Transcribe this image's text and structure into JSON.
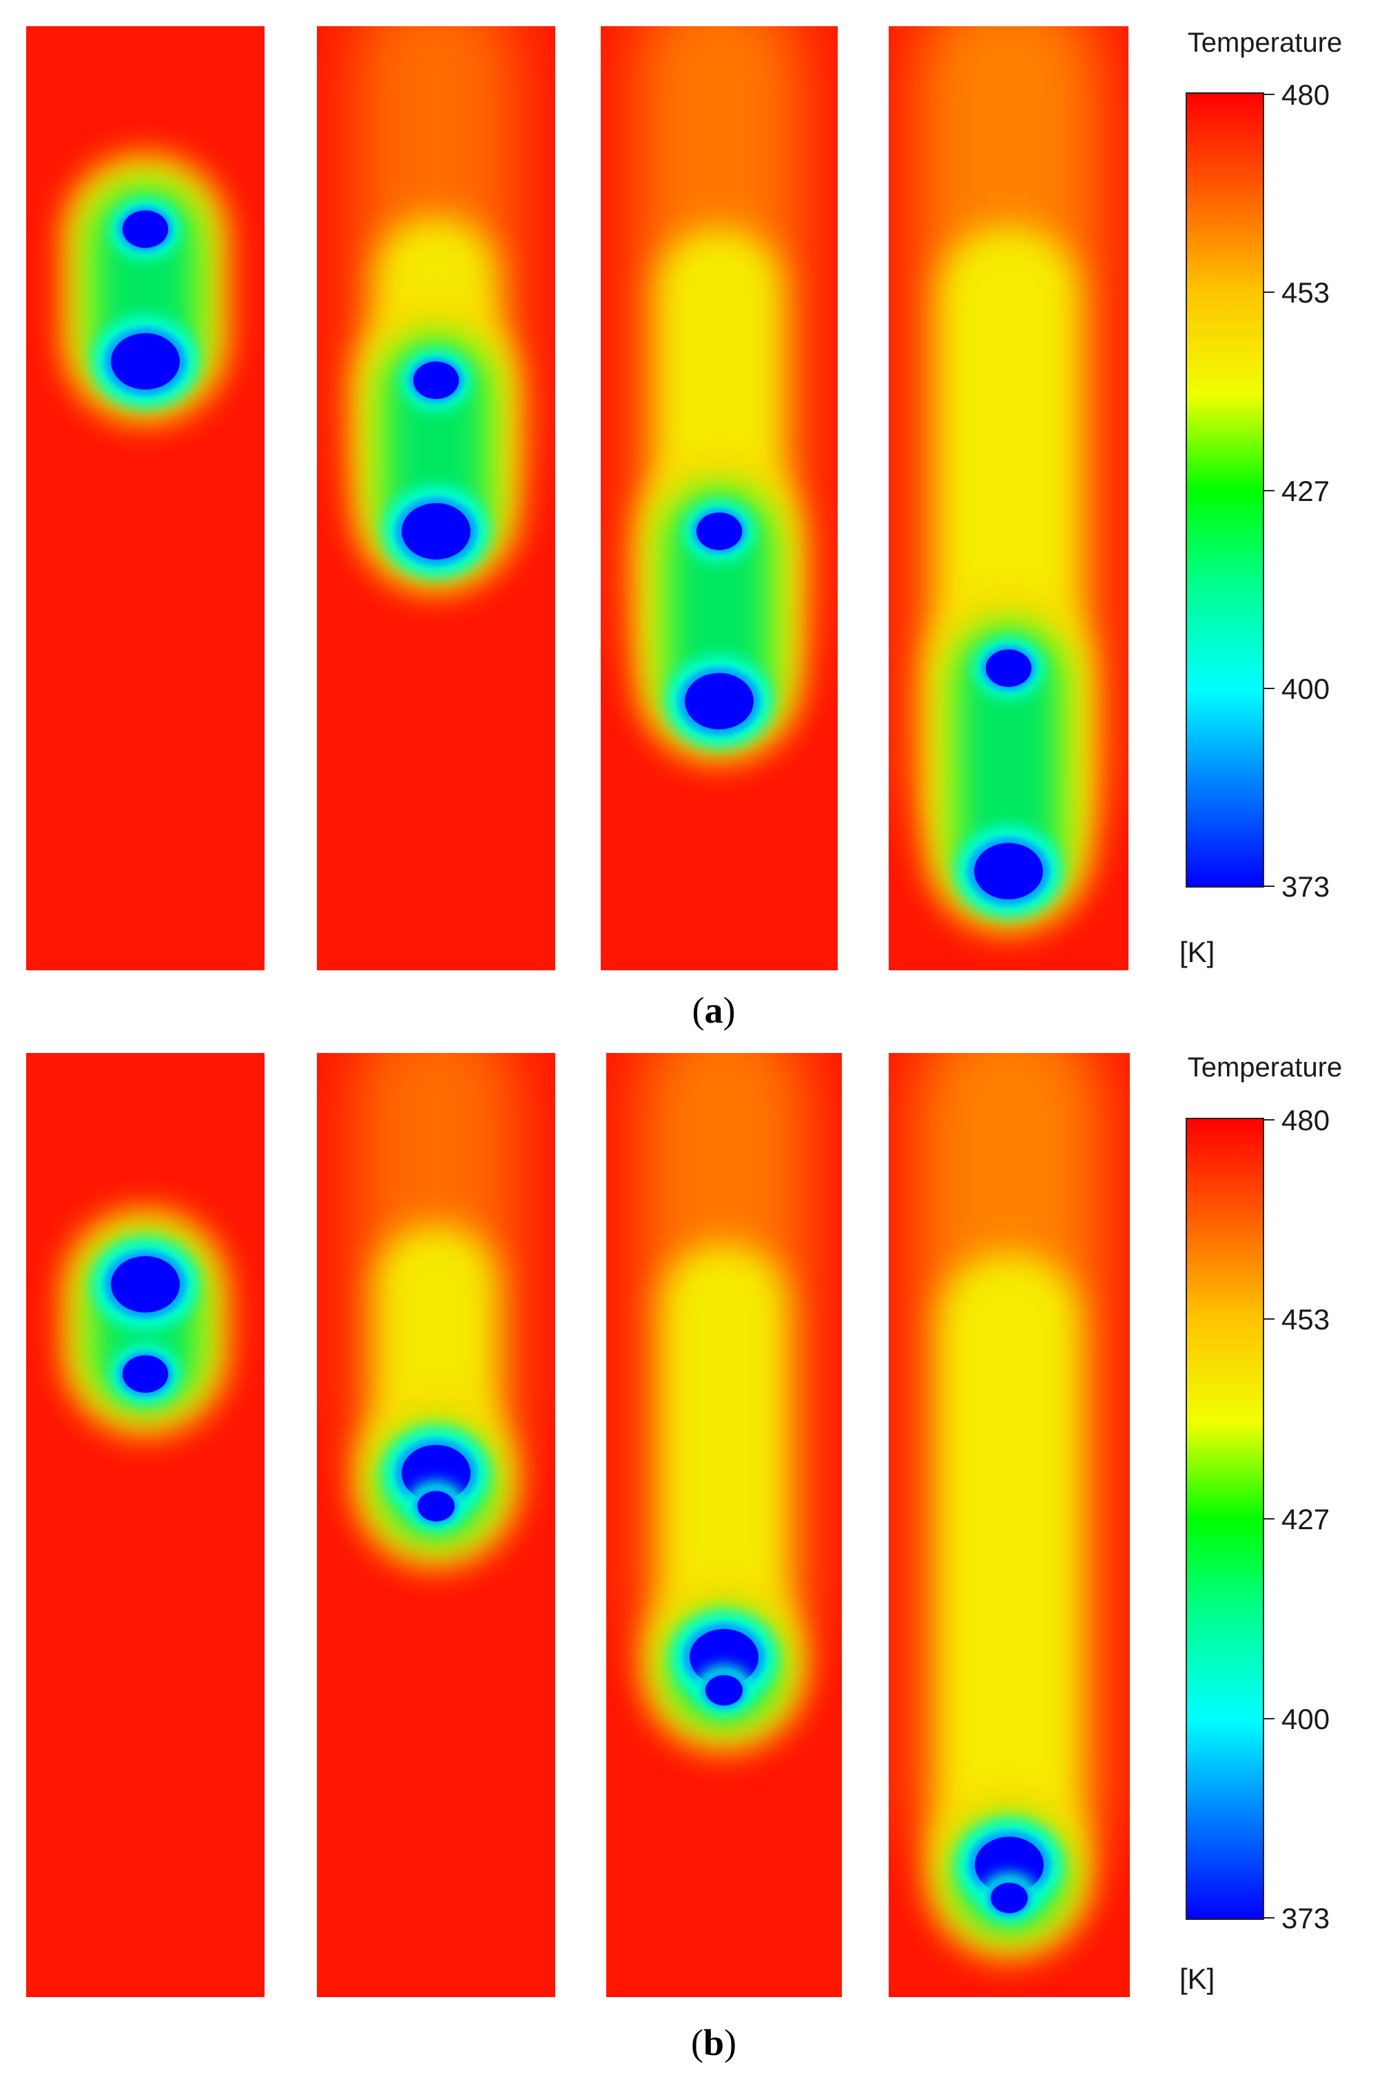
{
  "panels": [
    {
      "caption_open": "(",
      "caption_letter": "a",
      "caption_close": ")",
      "colorbar": {
        "title": "Temperature",
        "unit": "[K]",
        "ticks": [
          "480",
          "453",
          "427",
          "400",
          "373"
        ]
      },
      "frames": [
        {
          "id": "a1",
          "droplets": [
            {
              "depth": 0.215,
              "size": 0.6
            },
            {
              "depth": 0.355,
              "size": 1.0
            }
          ],
          "wake_length": 0.2,
          "wake_width": 0.55,
          "tail_warmth": 0.0
        },
        {
          "id": "a2",
          "droplets": [
            {
              "depth": 0.375,
              "size": 0.6
            },
            {
              "depth": 0.535,
              "size": 1.0
            }
          ],
          "wake_length": 0.45,
          "wake_width": 0.62,
          "tail_warmth": 0.3
        },
        {
          "id": "a3",
          "droplets": [
            {
              "depth": 0.535,
              "size": 0.6
            },
            {
              "depth": 0.715,
              "size": 1.0
            }
          ],
          "wake_length": 0.62,
          "wake_width": 0.64,
          "tail_warmth": 0.55
        },
        {
          "id": "a4",
          "droplets": [
            {
              "depth": 0.68,
              "size": 0.6
            },
            {
              "depth": 0.895,
              "size": 1.0
            }
          ],
          "wake_length": 0.82,
          "wake_width": 0.7,
          "tail_warmth": 0.75
        }
      ]
    },
    {
      "caption_open": "(",
      "caption_letter": "b",
      "caption_close": ")",
      "colorbar": {
        "title": "Temperature",
        "unit": "[K]",
        "ticks": [
          "480",
          "453",
          "427",
          "400",
          "373"
        ]
      },
      "frames": [
        {
          "id": "b1",
          "droplets": [
            {
              "depth": 0.245,
              "size": 1.0
            },
            {
              "depth": 0.34,
              "size": 0.6
            }
          ],
          "wake_length": 0.2,
          "wake_width": 0.55,
          "tail_warmth": 0.0
        },
        {
          "id": "b2",
          "droplets": [
            {
              "depth": 0.445,
              "size": 1.0
            },
            {
              "depth": 0.48,
              "size": 0.45
            }
          ],
          "wake_length": 0.42,
          "wake_width": 0.62,
          "tail_warmth": 0.3
        },
        {
          "id": "b3",
          "droplets": [
            {
              "depth": 0.64,
              "size": 1.0
            },
            {
              "depth": 0.675,
              "size": 0.45
            }
          ],
          "wake_length": 0.6,
          "wake_width": 0.64,
          "tail_warmth": 0.55
        },
        {
          "id": "b4",
          "droplets": [
            {
              "depth": 0.86,
              "size": 1.0
            },
            {
              "depth": 0.895,
              "size": 0.45
            }
          ],
          "wake_length": 0.82,
          "wake_width": 0.7,
          "tail_warmth": 0.75
        }
      ]
    }
  ]
}
